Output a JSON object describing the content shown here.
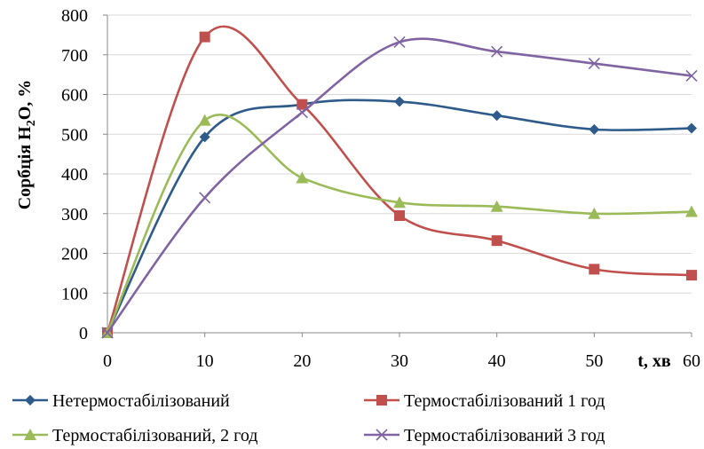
{
  "chart_data": {
    "type": "line",
    "xlabel": "t, хв",
    "ylabel_prefix": "Сорбція H",
    "ylabel_sub": "2",
    "ylabel_suffix": "O, %",
    "xlim": [
      0,
      60
    ],
    "ylim": [
      0,
      800
    ],
    "x_ticks": [
      0,
      10,
      20,
      30,
      40,
      50,
      60
    ],
    "y_ticks": [
      0,
      100,
      200,
      300,
      400,
      500,
      600,
      700,
      800
    ],
    "grid": "horizontal",
    "legend_position": "bottom",
    "x": [
      0,
      10,
      20,
      30,
      40,
      50,
      60
    ],
    "series": [
      {
        "name": "Нетермостабілізований",
        "color": "#2E5B8A",
        "marker": "diamond",
        "values": [
          0,
          493,
          575,
          582,
          547,
          512,
          515
        ]
      },
      {
        "name": "Термостабілізований 1 год",
        "color": "#C0504D",
        "marker": "square",
        "values": [
          0,
          745,
          575,
          295,
          232,
          160,
          145
        ]
      },
      {
        "name": "Термостабілізований, 2 год",
        "color": "#9BBB59",
        "marker": "triangle",
        "values": [
          0,
          535,
          390,
          328,
          318,
          300,
          305
        ]
      },
      {
        "name": "Термостабілізований 3 год",
        "color": "#8064A2",
        "marker": "x",
        "values": [
          0,
          340,
          555,
          732,
          708,
          678,
          647
        ]
      }
    ]
  }
}
